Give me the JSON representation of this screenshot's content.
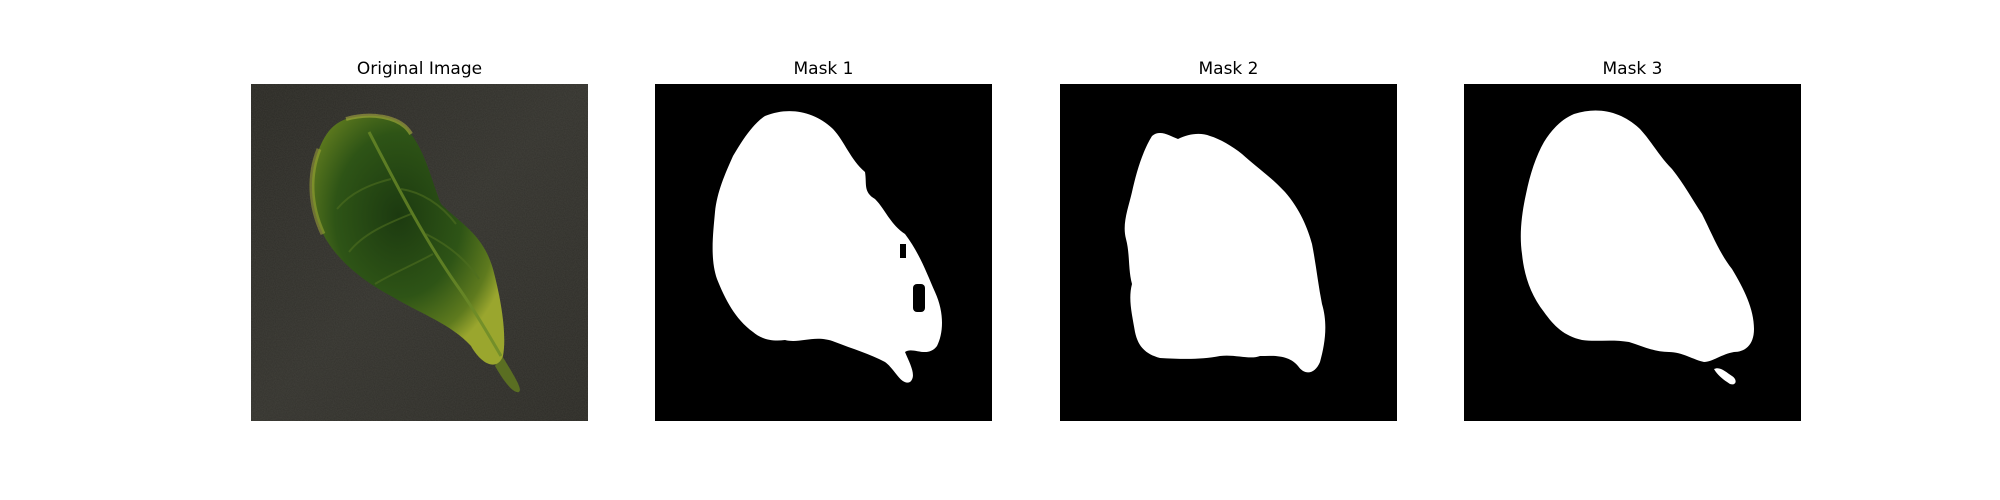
{
  "figure": {
    "panels": [
      {
        "title": "Original Image"
      },
      {
        "title": "Mask 1"
      },
      {
        "title": "Mask 2"
      },
      {
        "title": "Mask 3"
      }
    ]
  },
  "colors": {
    "background": "#ffffff",
    "mask_background": "#000000",
    "mask_foreground": "#ffffff",
    "photo_background": "#2e2d28",
    "leaf_dark": "#1f3a12",
    "leaf_mid": "#3a5a1a",
    "leaf_edge": "#8a9a2a"
  }
}
